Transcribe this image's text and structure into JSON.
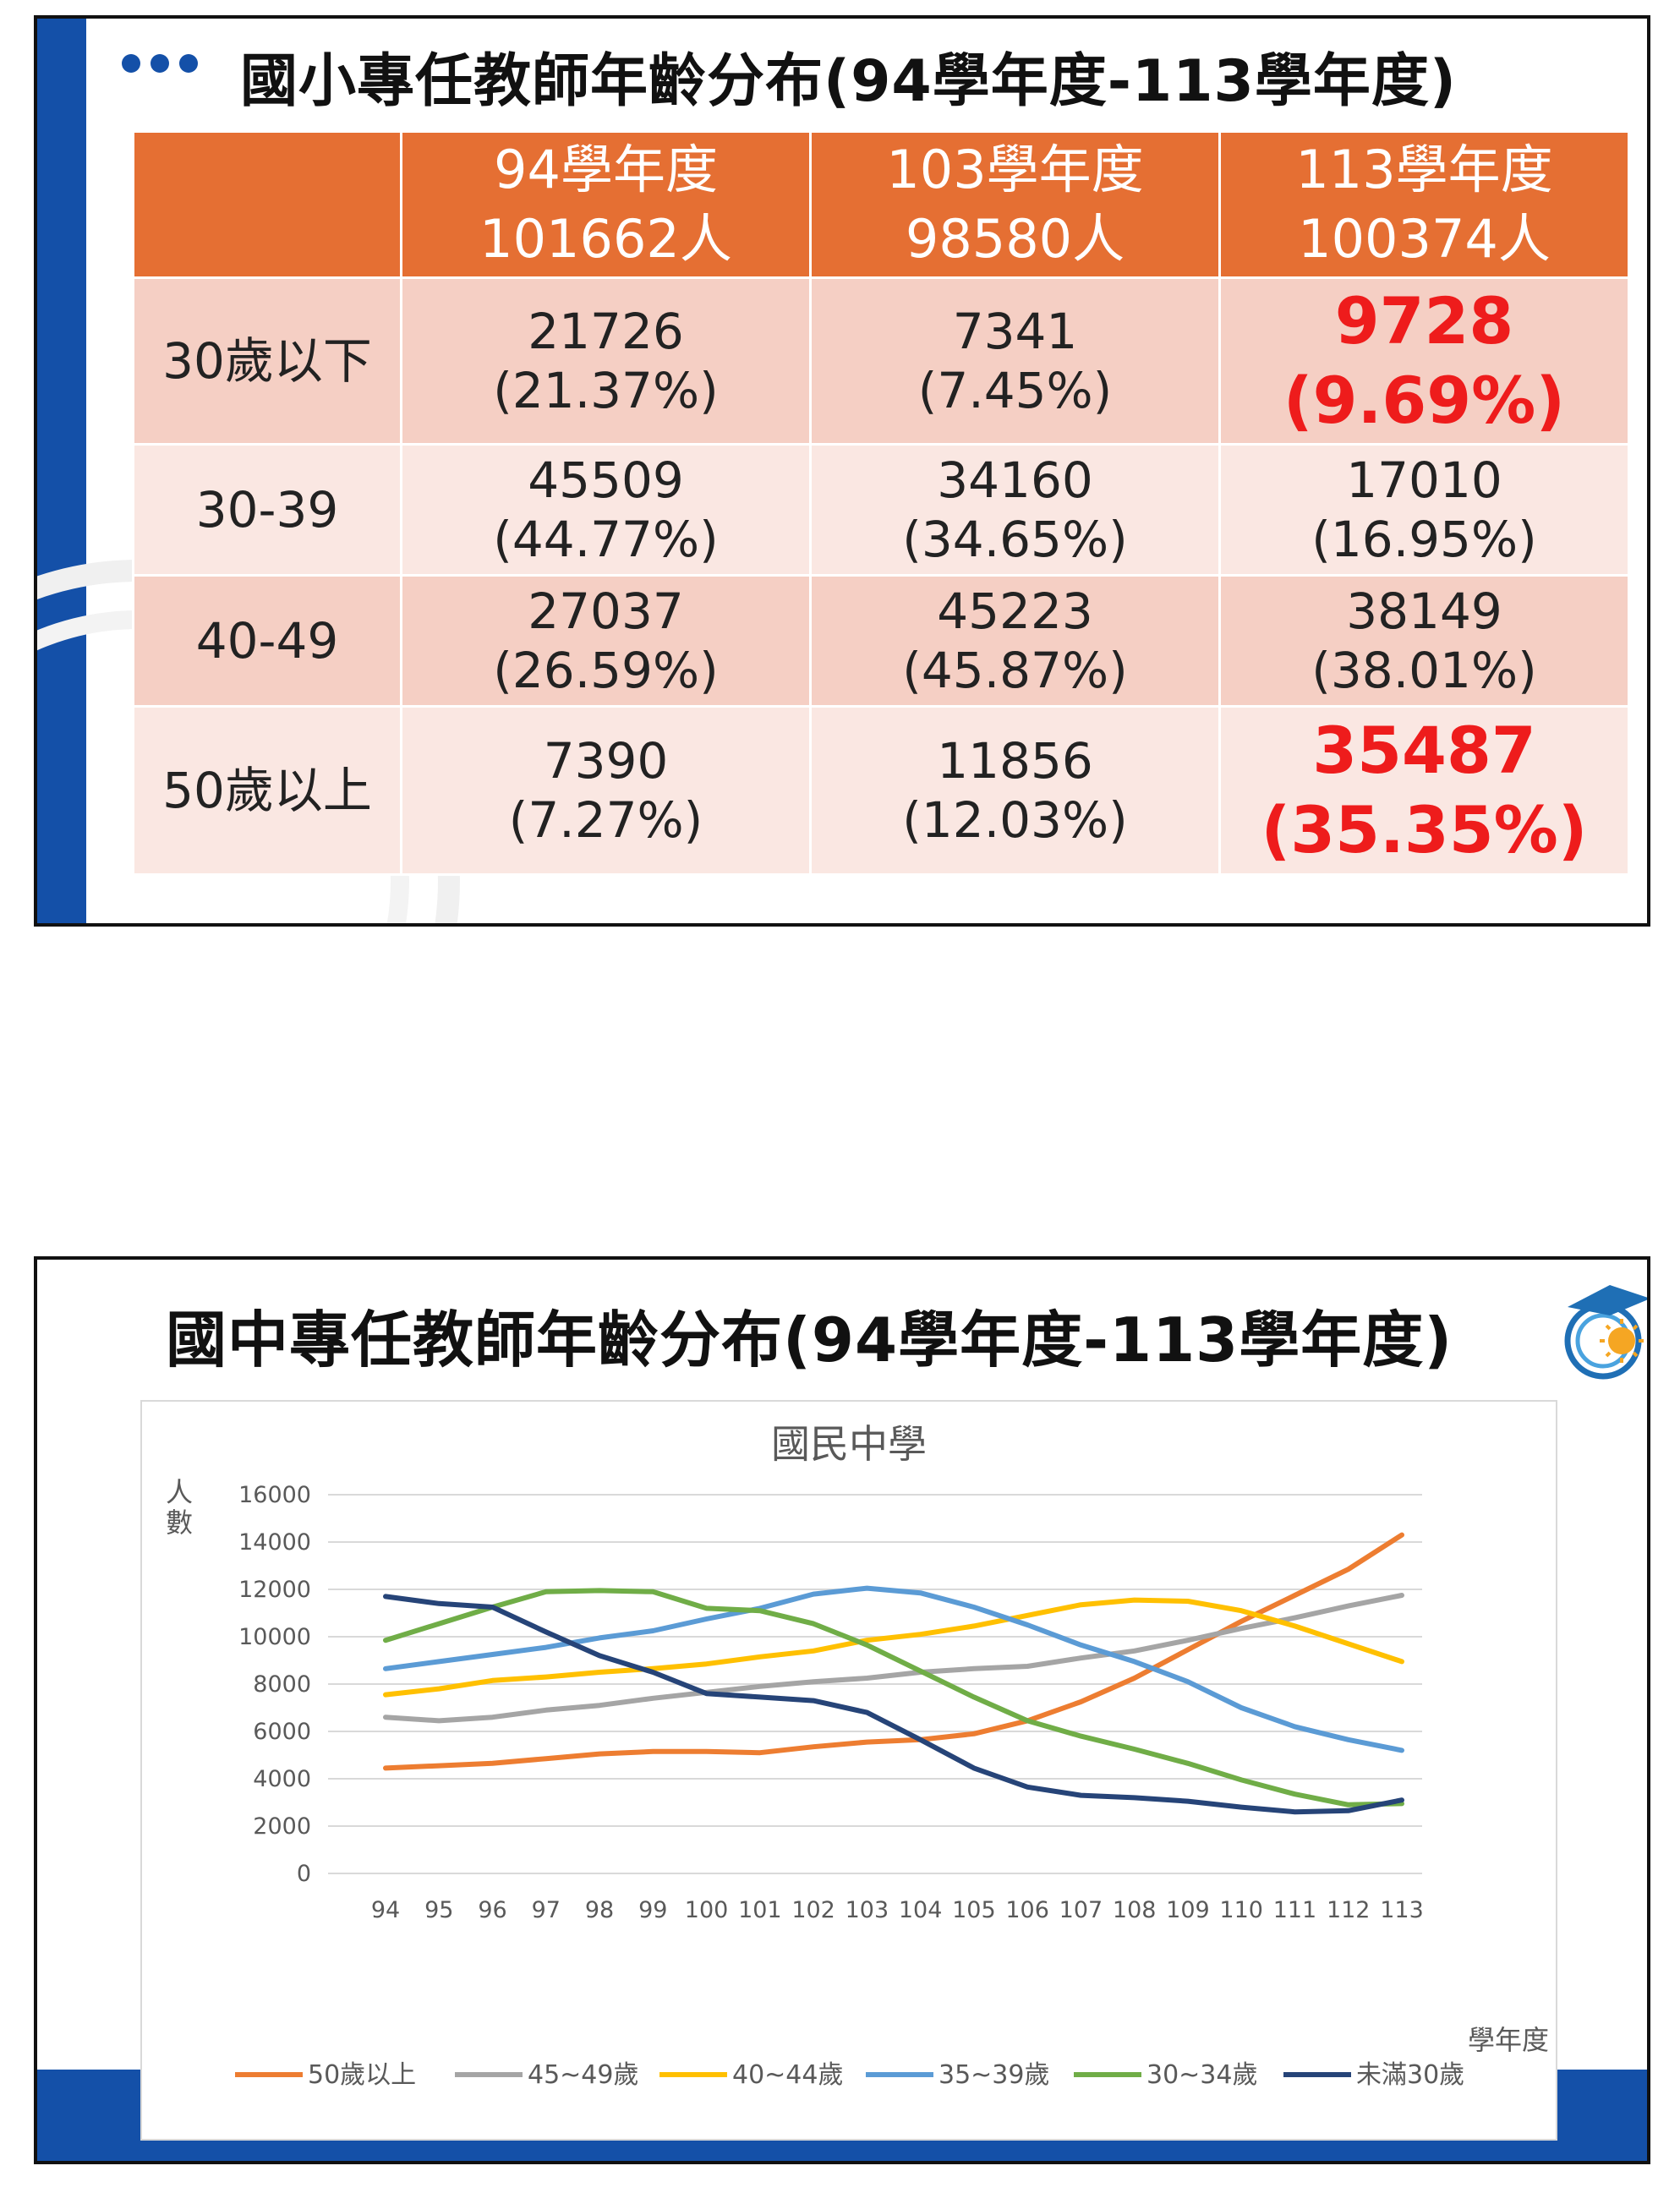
{
  "slide1": {
    "title": "國小專任教師年齡分布(94學年度-113學年度)",
    "header": [
      {
        "line1": "",
        "line2": ""
      },
      {
        "line1": "94學年度",
        "line2": "101662人"
      },
      {
        "line1": "103學年度",
        "line2": "98580人"
      },
      {
        "line1": "113學年度",
        "line2": "100374人"
      }
    ],
    "rows": [
      {
        "label": "30歲以下",
        "cells": [
          {
            "count": "21726",
            "pct": "(21.37%)"
          },
          {
            "count": "7341",
            "pct": "(7.45%)"
          },
          {
            "count": "9728",
            "pct": "(9.69%)",
            "highlight": true
          }
        ]
      },
      {
        "label": "30-39",
        "cells": [
          {
            "count": "45509",
            "pct": "(44.77%)"
          },
          {
            "count": "34160",
            "pct": "(34.65%)"
          },
          {
            "count": "17010",
            "pct": "(16.95%)"
          }
        ]
      },
      {
        "label": "40-49",
        "cells": [
          {
            "count": "27037",
            "pct": "(26.59%)"
          },
          {
            "count": "45223",
            "pct": "(45.87%)"
          },
          {
            "count": "38149",
            "pct": "(38.01%)"
          }
        ]
      },
      {
        "label": "50歲以上",
        "cells": [
          {
            "count": "7390",
            "pct": "(7.27%)"
          },
          {
            "count": "11856",
            "pct": "(12.03%)"
          },
          {
            "count": "35487",
            "pct": "(35.35%)",
            "highlight": true
          }
        ]
      }
    ],
    "colors": {
      "header": "#e56f33",
      "highlight": "#ee1c1c",
      "accent": "#1450a8"
    }
  },
  "slide2": {
    "title": "國中專任教師年齡分布(94學年度-113學年度)",
    "logo_icon": "education-logo-icon"
  },
  "chart_data": {
    "type": "line",
    "title": "國民中學",
    "ylabel": "人數",
    "xlabel": "學年度",
    "ylim": [
      0,
      16000
    ],
    "yticks": [
      0,
      2000,
      4000,
      6000,
      8000,
      10000,
      12000,
      14000,
      16000
    ],
    "x": [
      "94",
      "95",
      "96",
      "97",
      "98",
      "99",
      "100",
      "101",
      "102",
      "103",
      "104",
      "105",
      "106",
      "107",
      "108",
      "109",
      "110",
      "111",
      "112",
      "113"
    ],
    "grid": true,
    "legend_position": "bottom",
    "series": [
      {
        "name": "50歲以上",
        "color": "#ed7d31",
        "values": [
          4450,
          4550,
          4650,
          4850,
          5050,
          5150,
          5150,
          5100,
          5350,
          5550,
          5650,
          5900,
          6450,
          7250,
          8250,
          9450,
          10650,
          11750,
          12850,
          14300
        ]
      },
      {
        "name": "45~49歲",
        "color": "#a5a5a5",
        "values": [
          6600,
          6450,
          6600,
          6900,
          7100,
          7400,
          7650,
          7900,
          8100,
          8250,
          8500,
          8650,
          8750,
          9100,
          9400,
          9850,
          10350,
          10800,
          11300,
          11750
        ]
      },
      {
        "name": "40~44歲",
        "color": "#ffc000",
        "values": [
          7550,
          7800,
          8150,
          8300,
          8500,
          8650,
          8850,
          9150,
          9400,
          9850,
          10100,
          10450,
          10900,
          11350,
          11550,
          11500,
          11100,
          10450,
          9700,
          8950
        ]
      },
      {
        "name": "35~39歲",
        "color": "#5b9bd5",
        "values": [
          8650,
          8950,
          9250,
          9550,
          9950,
          10250,
          10750,
          11200,
          11800,
          12050,
          11850,
          11250,
          10500,
          9650,
          8950,
          8100,
          7000,
          6200,
          5650,
          5200
        ]
      },
      {
        "name": "30~34歲",
        "color": "#70ad47",
        "values": [
          9850,
          10550,
          11250,
          11900,
          11950,
          11900,
          11200,
          11100,
          10550,
          9650,
          8550,
          7450,
          6450,
          5800,
          5250,
          4650,
          3950,
          3350,
          2900,
          2950
        ]
      },
      {
        "name": "未滿30歲",
        "color": "#264478",
        "values": [
          11700,
          11400,
          11250,
          10200,
          9200,
          8500,
          7600,
          7450,
          7300,
          6800,
          5650,
          4450,
          3650,
          3300,
          3200,
          3050,
          2800,
          2600,
          2650,
          3100
        ]
      }
    ]
  }
}
